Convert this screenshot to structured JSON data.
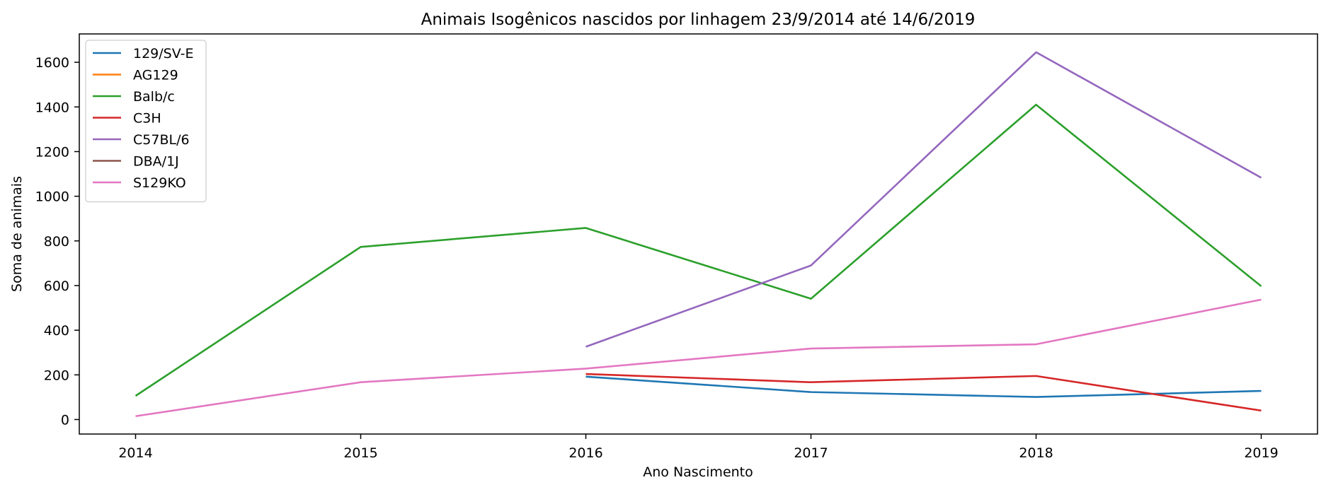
{
  "chart_data": {
    "type": "line",
    "title": "Animais Isogênicos nascidos por linhagem 23/9/2014 até 14/6/2019",
    "xlabel": "Ano Nascimento",
    "ylabel": "Soma de animais",
    "x": [
      2014,
      2015,
      2016,
      2017,
      2018,
      2019
    ],
    "x_ticks": [
      "2014",
      "2015",
      "2016",
      "2017",
      "2018",
      "2019"
    ],
    "xlim": [
      2013.75,
      2019.25
    ],
    "ylim": [
      -65,
      1727
    ],
    "y_ticks": [
      0,
      200,
      400,
      600,
      800,
      1000,
      1200,
      1400,
      1600
    ],
    "grid": false,
    "legend_position": "top-left",
    "series": [
      {
        "name": "129/SV-E",
        "color": "#1f77b4",
        "values": [
          null,
          null,
          192,
          123,
          101,
          128
        ]
      },
      {
        "name": "AG129",
        "color": "#ff7f0e",
        "values": [
          null,
          null,
          null,
          null,
          null,
          null
        ]
      },
      {
        "name": "Balb/c",
        "color": "#2ca02c",
        "values": [
          106,
          773,
          858,
          541,
          1410,
          597
        ]
      },
      {
        "name": "C3H",
        "color": "#d62728",
        "values": [
          null,
          null,
          204,
          167,
          195,
          40
        ]
      },
      {
        "name": "C57BL/6",
        "color": "#9467bd",
        "values": [
          null,
          null,
          326,
          690,
          1645,
          1083
        ]
      },
      {
        "name": "DBA/1J",
        "color": "#8c564b",
        "values": [
          null,
          null,
          null,
          null,
          null,
          null
        ]
      },
      {
        "name": "S129KO",
        "color": "#e377c2",
        "values": [
          15,
          167,
          228,
          318,
          337,
          537
        ]
      }
    ]
  }
}
